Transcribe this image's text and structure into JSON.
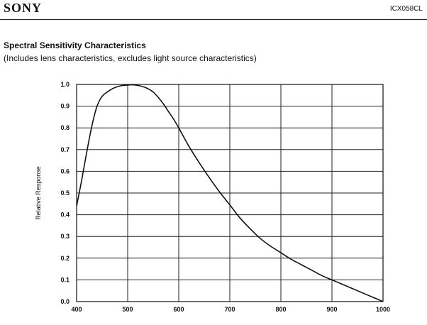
{
  "header": {
    "brand": "SONY",
    "model": "ICX058CL"
  },
  "page": {
    "title": "Spectral Sensitivity Characteristics",
    "subtitle": "(Includes lens characteristics,  excludes light source characteristics)"
  },
  "chart_data": {
    "type": "line",
    "title": "Spectral Sensitivity Characteristics",
    "ylabel": "Relative Response",
    "xlim": [
      400,
      1000
    ],
    "ylim": [
      0,
      1.0
    ],
    "grid": true,
    "x_ticks": [
      "400",
      "500",
      "600",
      "700",
      "800",
      "900",
      "1000"
    ],
    "y_ticks": [
      "0.0",
      "0.1",
      "0.2",
      "0.3",
      "0.4",
      "0.5",
      "0.6",
      "0.7",
      "0.8",
      "0.9",
      "1.0"
    ],
    "series": [
      {
        "x": [
          400,
          410,
          420,
          430,
          440,
          450,
          460,
          470,
          480,
          490,
          500,
          510,
          520,
          530,
          540,
          550,
          560,
          570,
          580,
          590,
          600,
          620,
          640,
          660,
          680,
          700,
          720,
          740,
          760,
          780,
          800,
          820,
          840,
          860,
          880,
          900,
          920,
          940,
          960,
          980,
          1000
        ],
        "y": [
          0.44,
          0.56,
          0.69,
          0.81,
          0.9,
          0.945,
          0.965,
          0.98,
          0.99,
          0.995,
          0.997,
          0.998,
          0.995,
          0.99,
          0.98,
          0.965,
          0.94,
          0.91,
          0.875,
          0.84,
          0.8,
          0.715,
          0.64,
          0.57,
          0.505,
          0.445,
          0.385,
          0.335,
          0.29,
          0.255,
          0.225,
          0.195,
          0.17,
          0.145,
          0.12,
          0.1,
          0.08,
          0.06,
          0.04,
          0.02,
          0.0
        ]
      }
    ]
  }
}
